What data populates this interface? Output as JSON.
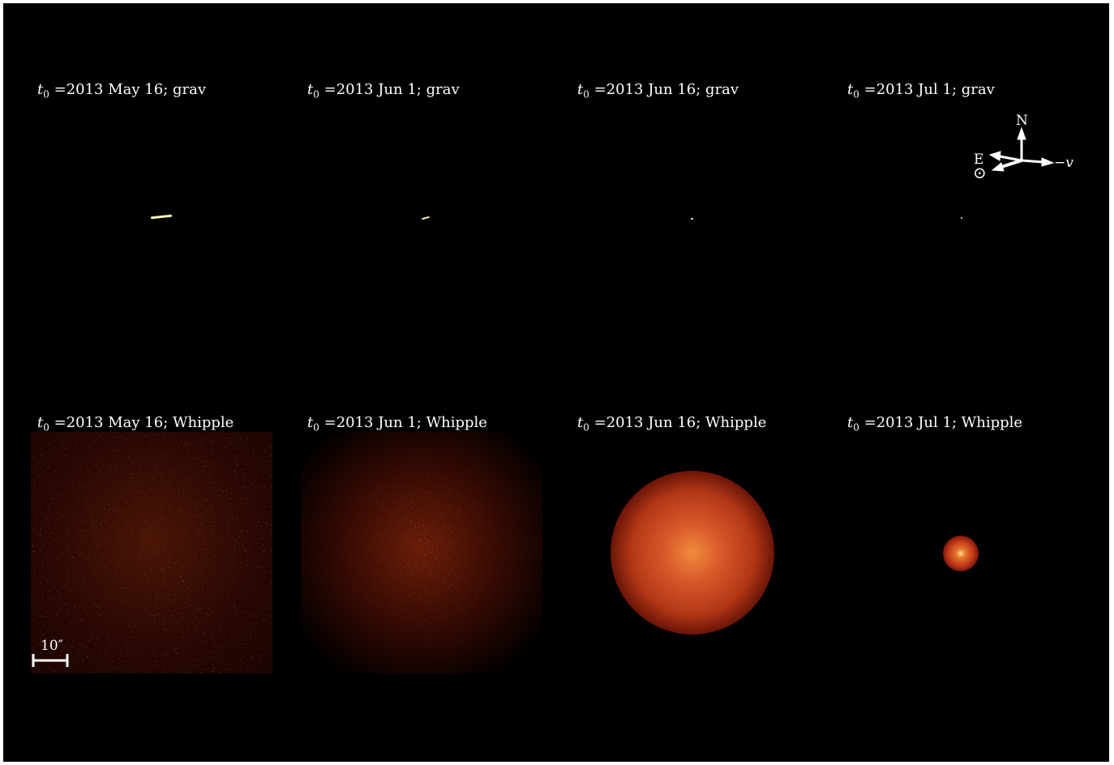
{
  "panels": [
    {
      "epoch": "2013 May 16",
      "model": "grav"
    },
    {
      "epoch": "2013 Jun 1",
      "model": "grav"
    },
    {
      "epoch": "2013 Jun 16",
      "model": "grav"
    },
    {
      "epoch": "2013 Jul 1",
      "model": "grav"
    },
    {
      "epoch": "2013 May 16",
      "model": "Whipple"
    },
    {
      "epoch": "2013 Jun 1",
      "model": "Whipple"
    },
    {
      "epoch": "2013 Jun 16",
      "model": "Whipple"
    },
    {
      "epoch": "2013 Jul 1",
      "model": "Whipple"
    }
  ],
  "label_prefix_var": "t",
  "label_prefix_sub": "0",
  "label_eq": " =",
  "label_sep": "; ",
  "compass": {
    "north": "N",
    "east": "E",
    "velocity": "−v",
    "sun": "⊙"
  },
  "scale_bar": {
    "label": "10″"
  },
  "colors": {
    "background": "#000000",
    "streak": "#fff0b8",
    "dust_hot": "#ffd27a",
    "dust_mid": "#c0391a",
    "dust_dark": "#3a0800"
  }
}
